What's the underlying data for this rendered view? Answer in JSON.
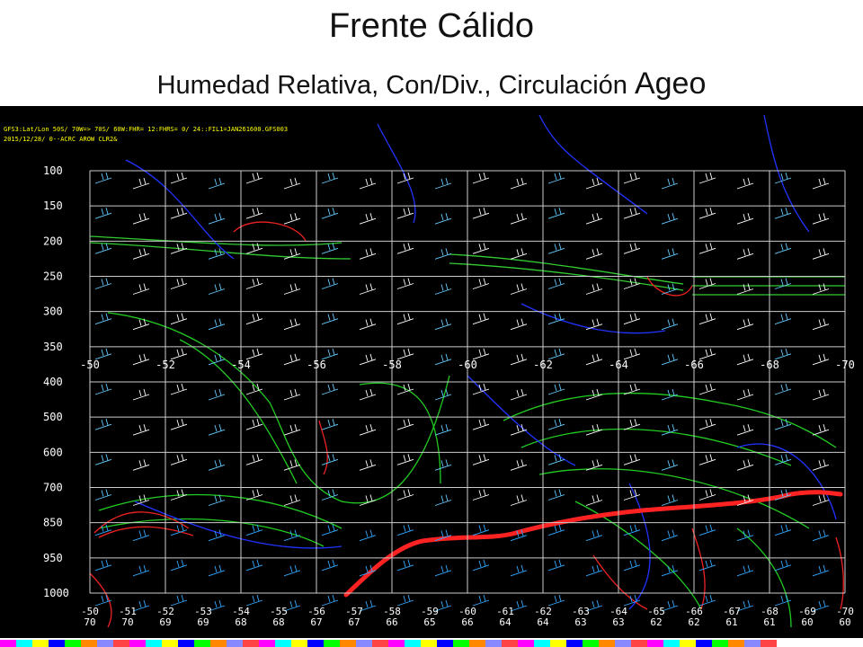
{
  "header": {
    "title": "Frente Cálido",
    "subtitle_main": "Humedad Relativa, Con/Div., Circulación ",
    "subtitle_tail": "Ageo"
  },
  "panel": {
    "info_lines": [
      "GFS3:Lat/Lon 50S/ 70W=> 70S/ 60W:FHR= 12:FHRS= 0/ 24::FIL1=JAN261600.GFS003",
      "2015/12/28/ 0--ACRC AROW CLR2&"
    ],
    "pressure_levels": [
      "100",
      "150",
      "200",
      "250",
      "300",
      "350",
      "400",
      "500",
      "600",
      "700",
      "850",
      "950",
      "1000"
    ],
    "mid_longitudes": [
      "-50",
      "-52",
      "-54",
      "-56",
      "-58",
      "-60",
      "-62",
      "-64",
      "-66",
      "-68",
      "-70"
    ],
    "bottom_longitudes": [
      "-50",
      "-51",
      "-52",
      "-53",
      "-54",
      "-55",
      "-56",
      "-57",
      "-58",
      "-59",
      "-60",
      "-61",
      "-62",
      "-63",
      "-64",
      "-65",
      "-66",
      "-67",
      "-68",
      "-69",
      "-70"
    ],
    "bottom_latitudes": [
      "70",
      "70",
      "69",
      "69",
      "68",
      "68",
      "67",
      "67",
      "66",
      "65",
      "66",
      "64",
      "64",
      "63",
      "63",
      "62",
      "62",
      "61",
      "61",
      "60",
      "60"
    ]
  }
}
